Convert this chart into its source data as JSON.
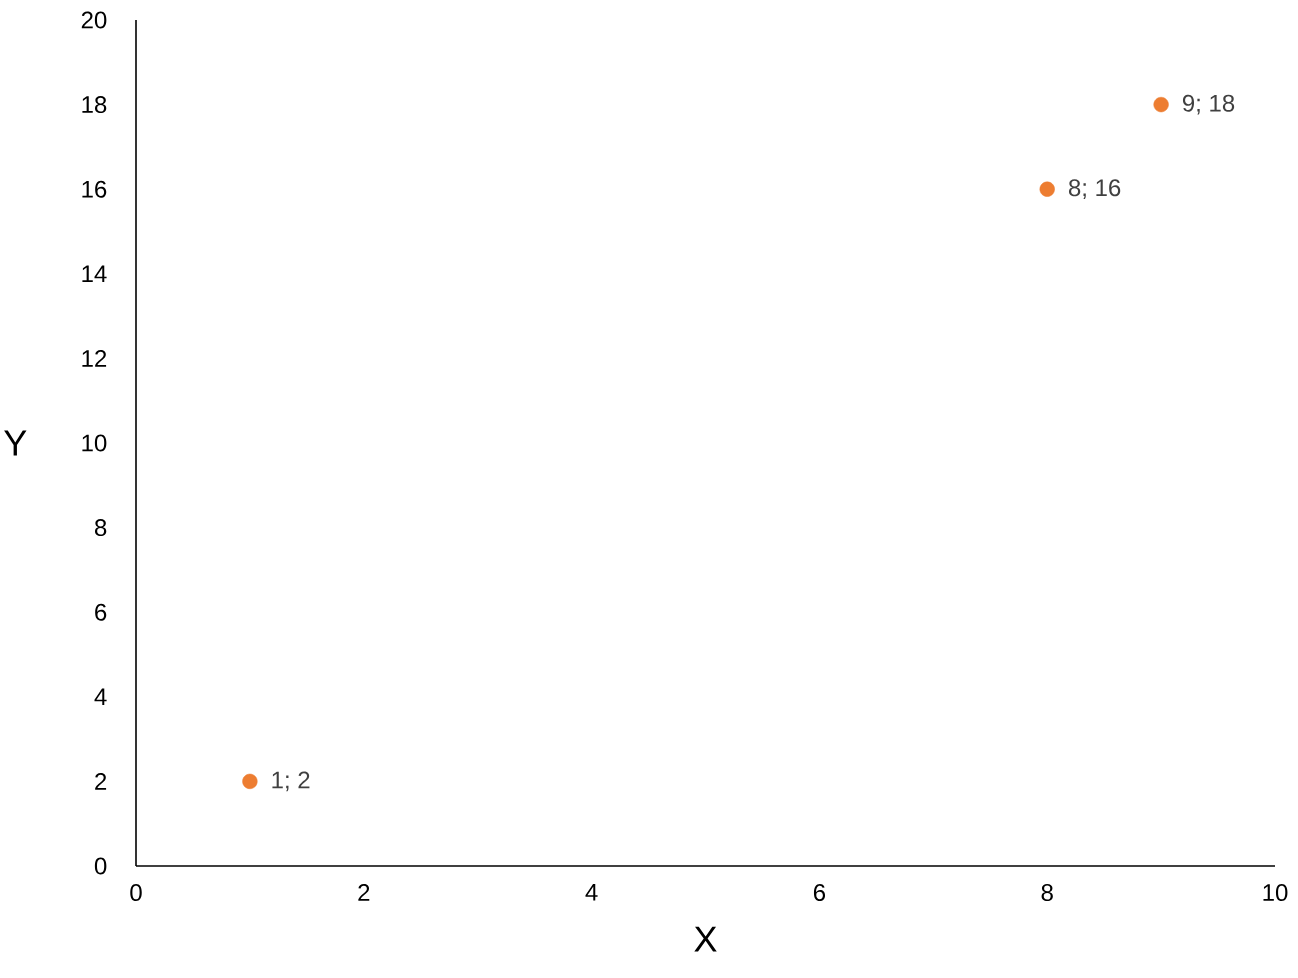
{
  "chart_data": {
    "type": "scatter",
    "xlabel": "X",
    "ylabel": "Y",
    "x": [
      1,
      8,
      9
    ],
    "values": [
      2,
      16,
      18
    ],
    "color": "#ed7d31",
    "value_labels": [
      "1; 2",
      "8; 16",
      "9; 18"
    ],
    "xlim": [
      0,
      10
    ],
    "ylim": [
      0,
      20
    ],
    "xticks": [
      0,
      2,
      4,
      6,
      8,
      10
    ],
    "yticks": [
      0,
      2,
      4,
      6,
      8,
      10,
      12,
      14,
      16,
      18,
      20
    ]
  }
}
